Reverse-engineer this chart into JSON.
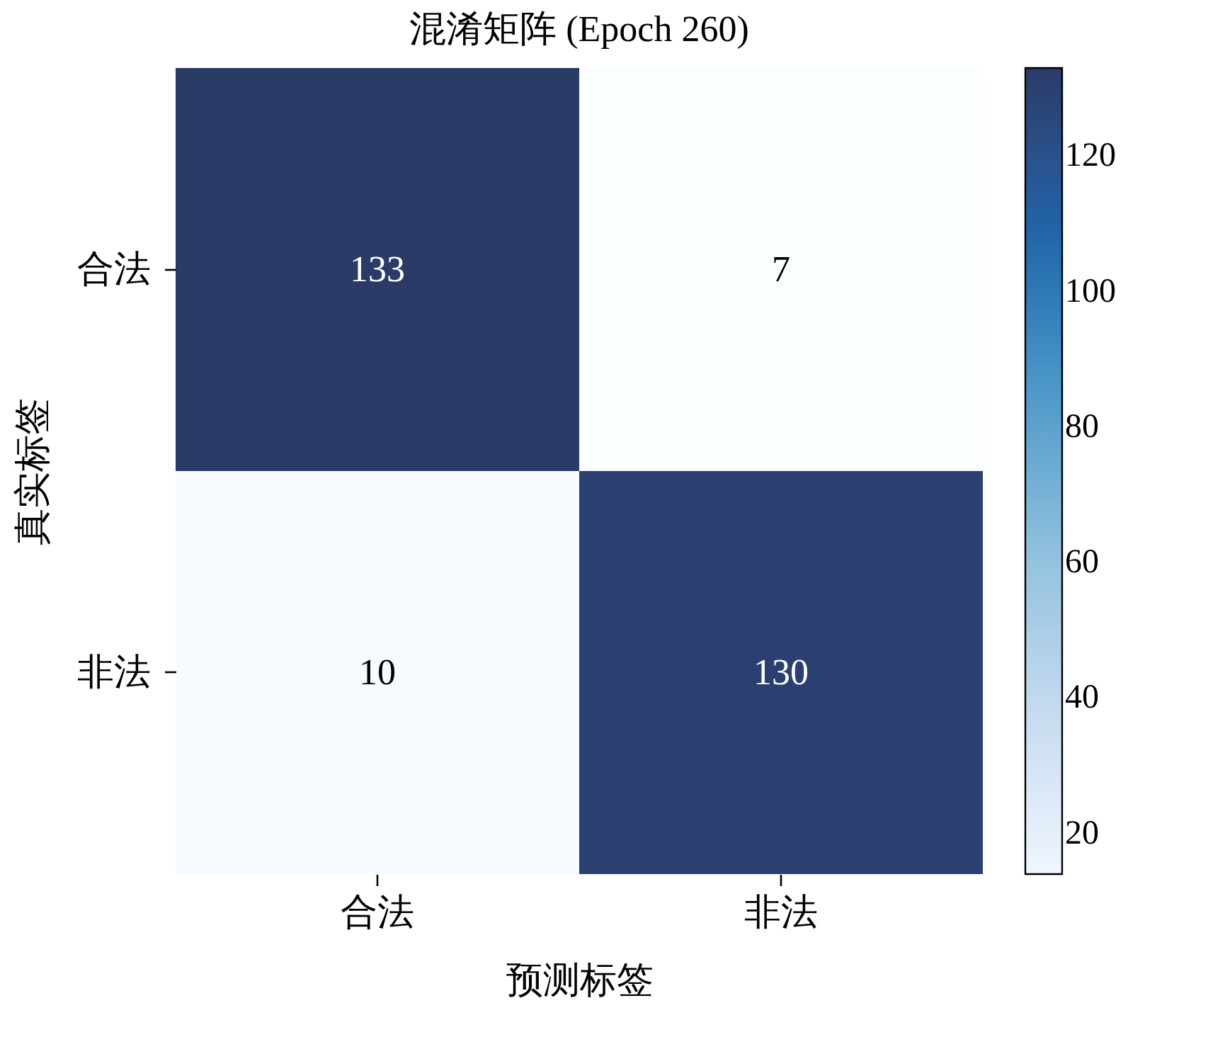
{
  "chart_data": {
    "type": "heatmap",
    "title": "混淆矩阵 (Epoch 260)",
    "xlabel": "预测标签",
    "ylabel": "真实标签",
    "categories": [
      "合法",
      "非法"
    ],
    "y_categories": [
      "合法",
      "非法"
    ],
    "cells": [
      [
        133,
        7
      ],
      [
        10,
        130
      ]
    ],
    "clim": [
      14,
      133
    ],
    "cticks": [
      20,
      40,
      60,
      80,
      100,
      120
    ],
    "data_labels": true
  }
}
